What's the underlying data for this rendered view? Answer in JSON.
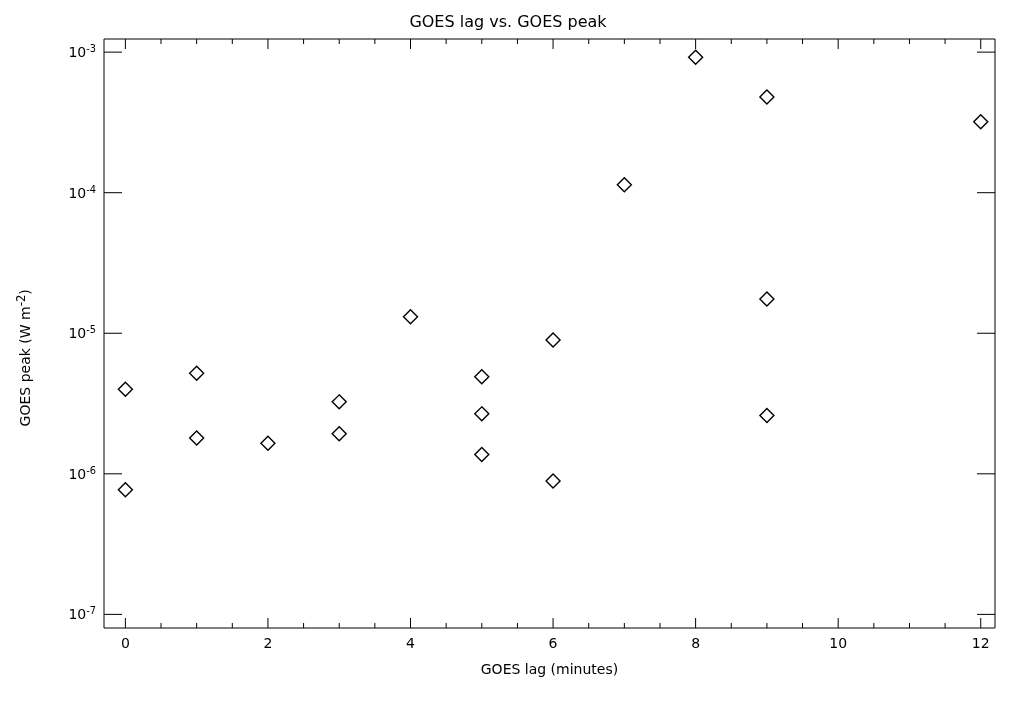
{
  "chart_data": {
    "type": "scatter",
    "title": "GOES lag vs. GOES peak",
    "xlabel": "GOES lag (minutes)",
    "ylabel": "GOES peak (W m$^{-2}$)",
    "x": [
      0,
      0,
      1,
      1,
      2,
      3,
      3,
      4,
      5,
      5,
      5,
      6,
      6,
      7,
      8,
      9,
      9,
      9,
      12
    ],
    "values": [
      4e-06,
      7.7e-07,
      5.2e-06,
      1.8e-06,
      1.65e-06,
      3.25e-06,
      1.93e-06,
      1.31e-05,
      4.9e-06,
      2.67e-06,
      1.37e-06,
      8.97e-06,
      8.9e-07,
      0.000114,
      0.00092,
      0.00048,
      1.75e-05,
      2.6e-06,
      0.00032
    ],
    "color": "#000000",
    "marker": "diamond",
    "log": "y",
    "xlim": [
      -0.3,
      12.2
    ],
    "ylim": [
      8e-08,
      0.00124
    ],
    "xticks": [
      0,
      {
        "value": 0.5,
        "label": null
      },
      {
        "value": 1,
        "label": null
      },
      {
        "value": 1.5,
        "label": null
      },
      2,
      {
        "value": 2.5,
        "label": null
      },
      {
        "value": 3,
        "label": null
      },
      {
        "value": 3.5,
        "label": null
      },
      4,
      {
        "value": 4.5,
        "label": null
      },
      {
        "value": 5,
        "label": null
      },
      {
        "value": 5.5,
        "label": null
      },
      6,
      {
        "value": 6.5,
        "label": null
      },
      {
        "value": 7,
        "label": null
      },
      {
        "value": 7.5,
        "label": null
      },
      8,
      {
        "value": 8.5,
        "label": null
      },
      {
        "value": 9,
        "label": null
      },
      {
        "value": 9.5,
        "label": null
      },
      10,
      {
        "value": 10.5,
        "label": null
      },
      {
        "value": 11,
        "label": null
      },
      {
        "value": 11.5,
        "label": null
      },
      12
    ],
    "yticks": [
      {
        "value": 1e-07,
        "label": "10$^{-7}$"
      },
      {
        "value": 1e-06,
        "label": "10$^{-6}$"
      },
      {
        "value": 1e-05,
        "label": "10$^{-5}$"
      },
      {
        "value": 0.0001,
        "label": "10$^{-4}$"
      },
      {
        "value": 0.001,
        "label": "10$^{-3}$"
      }
    ]
  }
}
